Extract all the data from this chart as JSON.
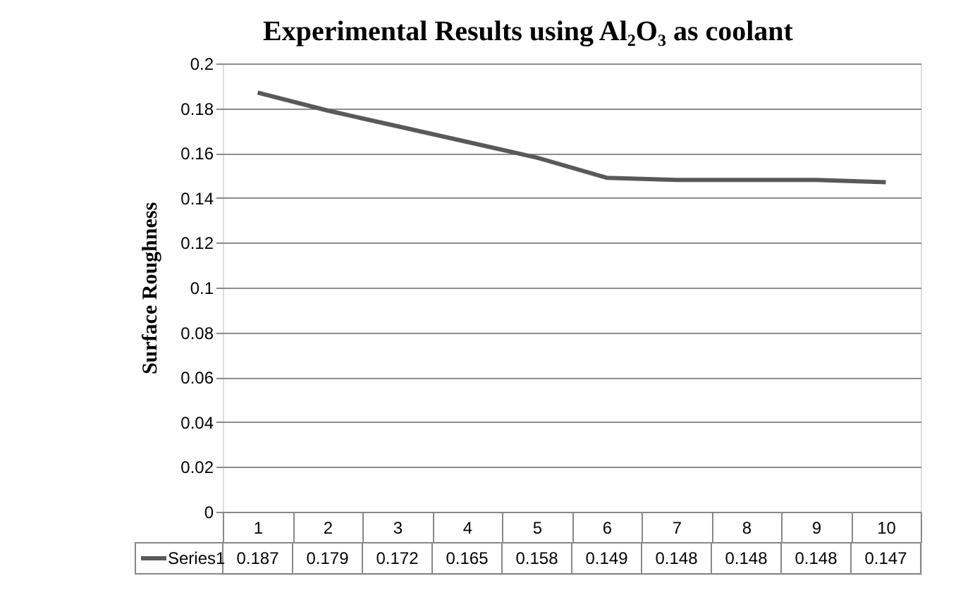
{
  "chart_data": {
    "type": "line",
    "title": "Experimental Results using Al₂O₃ as coolant",
    "ylabel": "Surface Roughness",
    "categories": [
      "1",
      "2",
      "3",
      "4",
      "5",
      "6",
      "7",
      "8",
      "9",
      "10"
    ],
    "series": [
      {
        "name": "Series1",
        "color": "#595959",
        "values": [
          0.187,
          0.179,
          0.172,
          0.165,
          0.158,
          0.149,
          0.148,
          0.148,
          0.148,
          0.147
        ]
      }
    ],
    "ylim": [
      0,
      0.2
    ],
    "yticks": [
      0,
      0.02,
      0.04,
      0.06,
      0.08,
      0.1,
      0.12,
      0.14,
      0.16,
      0.18,
      0.2
    ],
    "grid": "y",
    "legend": "bottom",
    "data_labels": true,
    "line_style": "solid"
  }
}
